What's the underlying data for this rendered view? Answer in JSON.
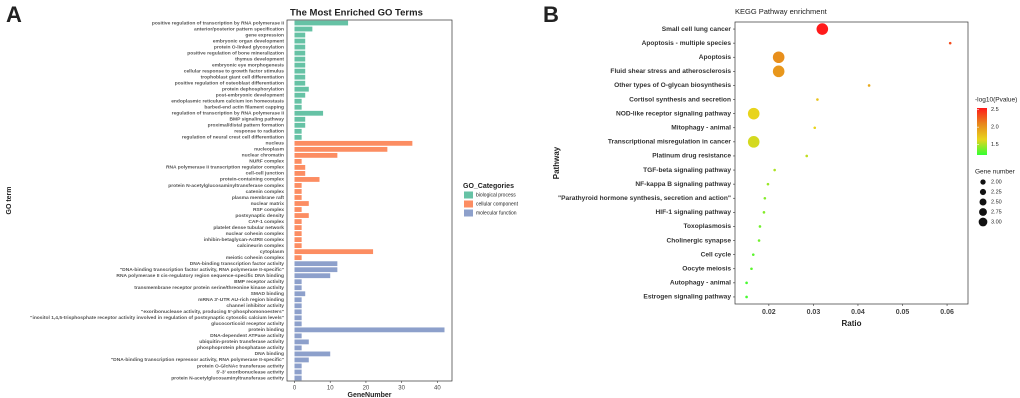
{
  "chart_data": [
    {
      "type": "bar",
      "orientation": "horizontal",
      "panel_label": "A",
      "title": "The Most Enriched GO Terms",
      "x_label": "GeneNumber",
      "y_label": "GO term",
      "categories": [
        "positive regulation of transcription by RNA polymerase II",
        "anterior/posterior pattern specification",
        "gene expression",
        "embryonic organ development",
        "protein O-linked glycosylation",
        "positive regulation of bone mineralization",
        "thymus development",
        "embryonic eye morphogenesis",
        "cellular response to growth factor stimulus",
        "trophoblast giant cell differentiation",
        "positive regulation of osteoblast differentiation",
        "protein dephosphorylation",
        "post-embryonic development",
        "endoplasmic reticulum calcium ion homeostasis",
        "barbed-end actin filament capping",
        "regulation of transcription by RNA polymerase II",
        "BMP signaling pathway",
        "proximal/distal pattern formation",
        "response to radiation",
        "regulation of neural crest cell differentiation",
        "nucleus",
        "nucleoplasm",
        "nuclear chromatin",
        "NURF complex",
        "RNA polymerase II transcription regulator complex",
        "cell-cell junction",
        "protein-containing complex",
        "protein N-acetylglucosaminyltransferase complex",
        "catenin complex",
        "plasma membrane raft",
        "nuclear matrix",
        "RSF complex",
        "postsynaptic density",
        "CAF-1 complex",
        "platelet dense tubular network",
        "nuclear cohesin complex",
        "inhibin-betaglycan-ActRII complex",
        "calcineurin complex",
        "cytoplasm",
        "meiotic cohesin complex",
        "DNA-binding transcription factor activity",
        "\"DNA-binding transcription factor activity, RNA polymerase II-specific\"",
        "RNA polymerase II cis-regulatory region sequence-specific DNA binding",
        "BMP receptor activity",
        "transmembrane receptor protein serine/threonine kinase activity",
        "SMAD binding",
        "mRNA 3'-UTR AU-rich region binding",
        "channel inhibitor activity",
        "\"exoribonuclease activity, producing 5'-phosphomonoesters\"",
        "\"inositol 1,4,5-trisphosphate receptor activity involved in regulation of postsynaptic cytosolic calcium levels\"",
        "glucocorticoid receptor activity",
        "protein binding",
        "DNA-dependent ATPase activity",
        "ubiquitin-protein transferase activity",
        "phosphoprotein phosphatase activity",
        "DNA binding",
        "\"DNA-binding transcription repressor activity, RNA polymerase II-specific\"",
        "protein O-GlcNAc transferase activity",
        "5'-3' exoribonuclease activity",
        "protein N-acetylglucosaminyltransferase activity"
      ],
      "series": [
        {
          "name": "biological process",
          "color": "#66c2a5",
          "values": [
            15,
            5,
            3,
            3,
            3,
            3,
            3,
            3,
            3,
            3,
            3,
            4,
            3,
            2,
            2,
            8,
            3,
            3,
            2,
            2,
            null,
            null,
            null,
            null,
            null,
            null,
            null,
            null,
            null,
            null,
            null,
            null,
            null,
            null,
            null,
            null,
            null,
            null,
            null,
            null,
            null,
            null,
            null,
            null,
            null,
            null,
            null,
            null,
            null,
            null,
            null,
            null,
            null,
            null,
            null,
            null,
            null,
            null,
            null,
            null
          ]
        },
        {
          "name": "cellular component",
          "color": "#fc8d62",
          "values": [
            null,
            null,
            null,
            null,
            null,
            null,
            null,
            null,
            null,
            null,
            null,
            null,
            null,
            null,
            null,
            null,
            null,
            null,
            null,
            null,
            33,
            26,
            12,
            2,
            3,
            3,
            7,
            2,
            2,
            2,
            4,
            2,
            4,
            2,
            2,
            2,
            2,
            2,
            22,
            2,
            null,
            null,
            null,
            null,
            null,
            null,
            null,
            null,
            null,
            null,
            null,
            null,
            null,
            null,
            null,
            null,
            null,
            null,
            null,
            null
          ]
        },
        {
          "name": "molecular function",
          "color": "#8da0cb",
          "values": [
            null,
            null,
            null,
            null,
            null,
            null,
            null,
            null,
            null,
            null,
            null,
            null,
            null,
            null,
            null,
            null,
            null,
            null,
            null,
            null,
            null,
            null,
            null,
            null,
            null,
            null,
            null,
            null,
            null,
            null,
            null,
            null,
            null,
            null,
            null,
            null,
            null,
            null,
            null,
            null,
            12,
            12,
            10,
            2,
            2,
            3,
            2,
            2,
            2,
            2,
            2,
            42,
            2,
            4,
            2,
            10,
            4,
            2,
            2,
            2
          ]
        }
      ],
      "xlim": [
        -2.1,
        44.1
      ],
      "xticks": [
        0,
        10,
        20,
        30,
        40
      ],
      "grid": false,
      "legend_title": "GO_Categories",
      "legend_position": "right"
    },
    {
      "type": "scatter",
      "panel_label": "B",
      "title": "KEGG Pathway enrichment",
      "x_label": "Ratio",
      "y_label": "Pathway",
      "categories": [
        "Small cell lung cancer",
        "Apoptosis - multiple species",
        "Apoptosis",
        "Fluid shear stress and atherosclerosis",
        "Other types of O-glycan biosynthesis",
        "Cortisol synthesis and secretion",
        "NOD-like receptor signaling pathway",
        "Mitophagy - animal",
        "Transcriptional misregulation in cancer",
        "Platinum drug resistance",
        "TGF-beta signaling pathway",
        "NF-kappa B signaling pathway",
        "\"Parathyroid hormone synthesis, secretion and action\"",
        "HIF-1 signaling pathway",
        "Toxoplasmosis",
        "Cholinergic synapse",
        "Cell cycle",
        "Oocyte meiosis",
        "Autophagy - animal",
        "Estrogen signaling pathway"
      ],
      "values": [
        0.032,
        0.0607,
        0.0222,
        0.0222,
        0.0425,
        0.0309,
        0.0166,
        0.0303,
        0.0166,
        0.0285,
        0.0213,
        0.0198,
        0.0191,
        0.0189,
        0.018,
        0.0178,
        0.0165,
        0.0161,
        0.015,
        0.015
      ],
      "sizes": [
        3,
        1,
        3,
        3,
        1,
        1,
        3,
        1,
        3,
        1,
        1,
        1,
        1,
        1,
        1,
        1,
        1,
        1,
        1,
        1
      ],
      "color_values": [
        2.55,
        2.35,
        2.05,
        2.0,
        1.9,
        1.75,
        1.65,
        1.65,
        1.6,
        1.55,
        1.5,
        1.45,
        1.4,
        1.4,
        1.35,
        1.35,
        1.3,
        1.3,
        1.25,
        1.25
      ],
      "xlim": [
        0.0124,
        0.0647
      ],
      "xticks": [
        0.02,
        0.03,
        0.04,
        0.05,
        0.06
      ],
      "grid": false,
      "color_legend_title": "-log10(Pvalue)",
      "colorlim": [
        1.2,
        2.55
      ],
      "colorticks": [
        1.5,
        {
          "value": 2,
          "label": "2.0"
        },
        2.5
      ],
      "colors": [
        "#33ff33",
        "#e8d41c",
        "#e8861c",
        "#ff1a1a"
      ],
      "size_legend_title": "Gene number",
      "sizelim": [
        1,
        3
      ],
      "size_ticks": [
        {
          "value": 2,
          "label": "2.00"
        },
        {
          "value": 2.25,
          "label": "2.25"
        },
        {
          "value": 2.5,
          "label": "2.50"
        },
        {
          "value": 2.75,
          "label": "2.75"
        },
        {
          "value": 3,
          "label": "3.00"
        }
      ]
    }
  ]
}
